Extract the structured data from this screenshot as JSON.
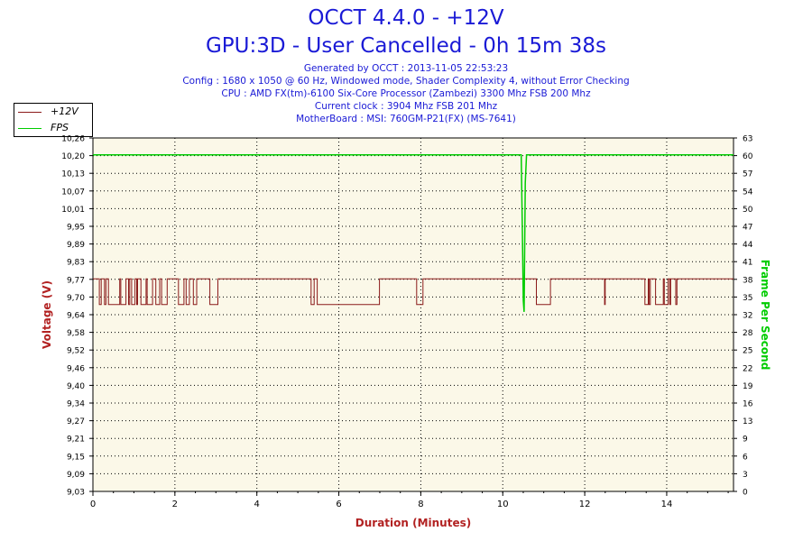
{
  "header": {
    "title1": "OCCT 4.4.0 - +12V",
    "title2": "GPU:3D - User Cancelled - 0h 15m 38s",
    "info_lines": [
      "Generated by OCCT : 2013-11-05 22:53:23",
      "Config : 1680 x 1050 @ 60 Hz, Windowed mode, Shader Complexity 4, without Error Checking",
      "CPU : AMD FX(tm)-6100 Six-Core Processor (Zambezi) 3300 Mhz FSB 200 Mhz",
      "Current clock : 3904 Mhz FSB 201 Mhz",
      "MotherBoard : MSI: 760GM-P21(FX) (MS-7641)"
    ]
  },
  "colors": {
    "voltage": "#8b1a1a",
    "fps": "#00cc00",
    "plot_bg": "#fbf8e8",
    "grid": "#000000",
    "title": "#1a1ad6",
    "axis_label": "#b22222"
  },
  "chart_data": {
    "type": "line",
    "xlabel": "Duration (Minutes)",
    "ylabel_left": "Voltage (V)",
    "ylabel_right": "Frame Per Second",
    "xlim": [
      0,
      15.63
    ],
    "x_ticks": [
      0,
      2,
      4,
      6,
      8,
      10,
      12,
      14
    ],
    "ylim_left": [
      9.03,
      10.26
    ],
    "y_ticks_left": [
      "9,03",
      "9,09",
      "9,15",
      "9,21",
      "9,27",
      "9,34",
      "9,40",
      "9,46",
      "9,52",
      "9,58",
      "9,64",
      "9,70",
      "9,77",
      "9,83",
      "9,89",
      "9,95",
      "10,01",
      "10,07",
      "10,13",
      "10,20",
      "10,26"
    ],
    "ylim_right": [
      0,
      63
    ],
    "y_ticks_right": [
      0,
      3,
      6,
      9,
      13,
      16,
      19,
      22,
      25,
      28,
      32,
      35,
      38,
      41,
      44,
      47,
      50,
      54,
      57,
      60,
      63
    ],
    "grid": true,
    "legend_position": "top-left",
    "series": [
      {
        "name": "+12V",
        "axis": "left",
        "values_levels": [
          9.77,
          9.68
        ],
        "segments": [
          {
            "x0": 0.0,
            "x1": 0.08,
            "pattern": "high"
          },
          {
            "x0": 0.08,
            "x1": 2.45,
            "pattern": "noisy"
          },
          {
            "x0": 2.45,
            "x1": 3.05,
            "pattern": "noisy-sparse"
          },
          {
            "x0": 3.05,
            "x1": 5.2,
            "pattern": "high"
          },
          {
            "x0": 5.2,
            "x1": 5.65,
            "pattern": "noisy"
          },
          {
            "x0": 5.65,
            "x1": 6.3,
            "pattern": "low"
          },
          {
            "x0": 6.3,
            "x1": 8.4,
            "pattern": "noisy-sparse"
          },
          {
            "x0": 8.4,
            "x1": 10.4,
            "pattern": "noisy-sparse"
          },
          {
            "x0": 10.4,
            "x1": 11.2,
            "pattern": "noisy-sparse"
          },
          {
            "x0": 11.2,
            "x1": 12.5,
            "pattern": "noisy-sparse"
          },
          {
            "x0": 12.5,
            "x1": 13.4,
            "pattern": "high"
          },
          {
            "x0": 13.4,
            "x1": 14.25,
            "pattern": "noisy"
          },
          {
            "x0": 14.25,
            "x1": 15.63,
            "pattern": "high"
          }
        ]
      },
      {
        "name": "FPS",
        "axis": "right",
        "x": [
          0,
          10.45,
          10.48,
          10.5,
          10.52,
          10.55,
          10.58,
          15.63
        ],
        "values": [
          60,
          60,
          45,
          34,
          32,
          55,
          60,
          60
        ]
      }
    ]
  }
}
